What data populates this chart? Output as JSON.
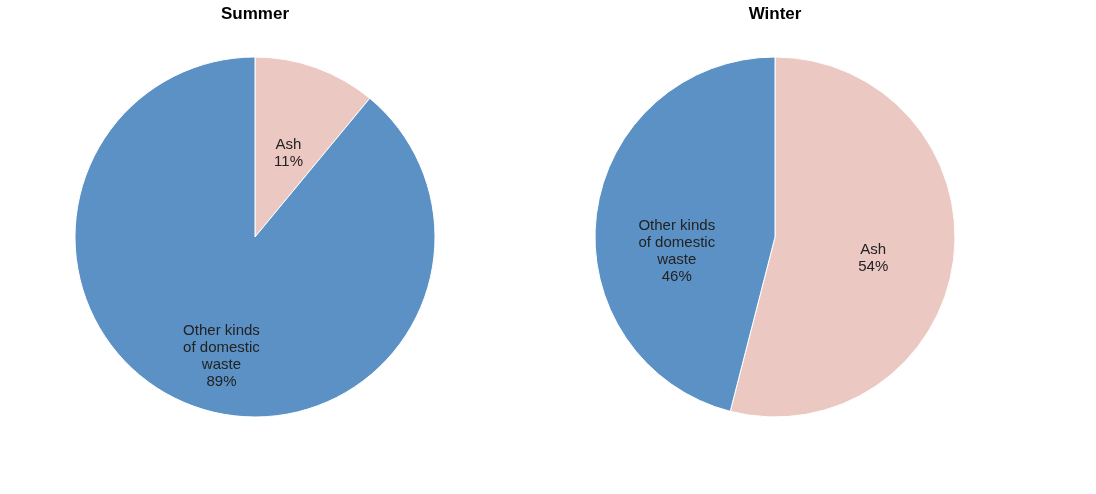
{
  "chart_data": [
    {
      "type": "pie",
      "title": "Summer",
      "categories": [
        "Ash",
        "Other kinds of domestic waste"
      ],
      "values": [
        11,
        89
      ],
      "colors": [
        "#ecc8c3",
        "#5b91c5"
      ],
      "value_labels": [
        "11%",
        "89%"
      ]
    },
    {
      "type": "pie",
      "title": "Winter",
      "categories": [
        "Ash",
        "Other kinds of domestic waste"
      ],
      "values": [
        54,
        46
      ],
      "colors": [
        "#ecc8c3",
        "#5b91c5"
      ],
      "value_labels": [
        "54%",
        "46%"
      ]
    }
  ]
}
